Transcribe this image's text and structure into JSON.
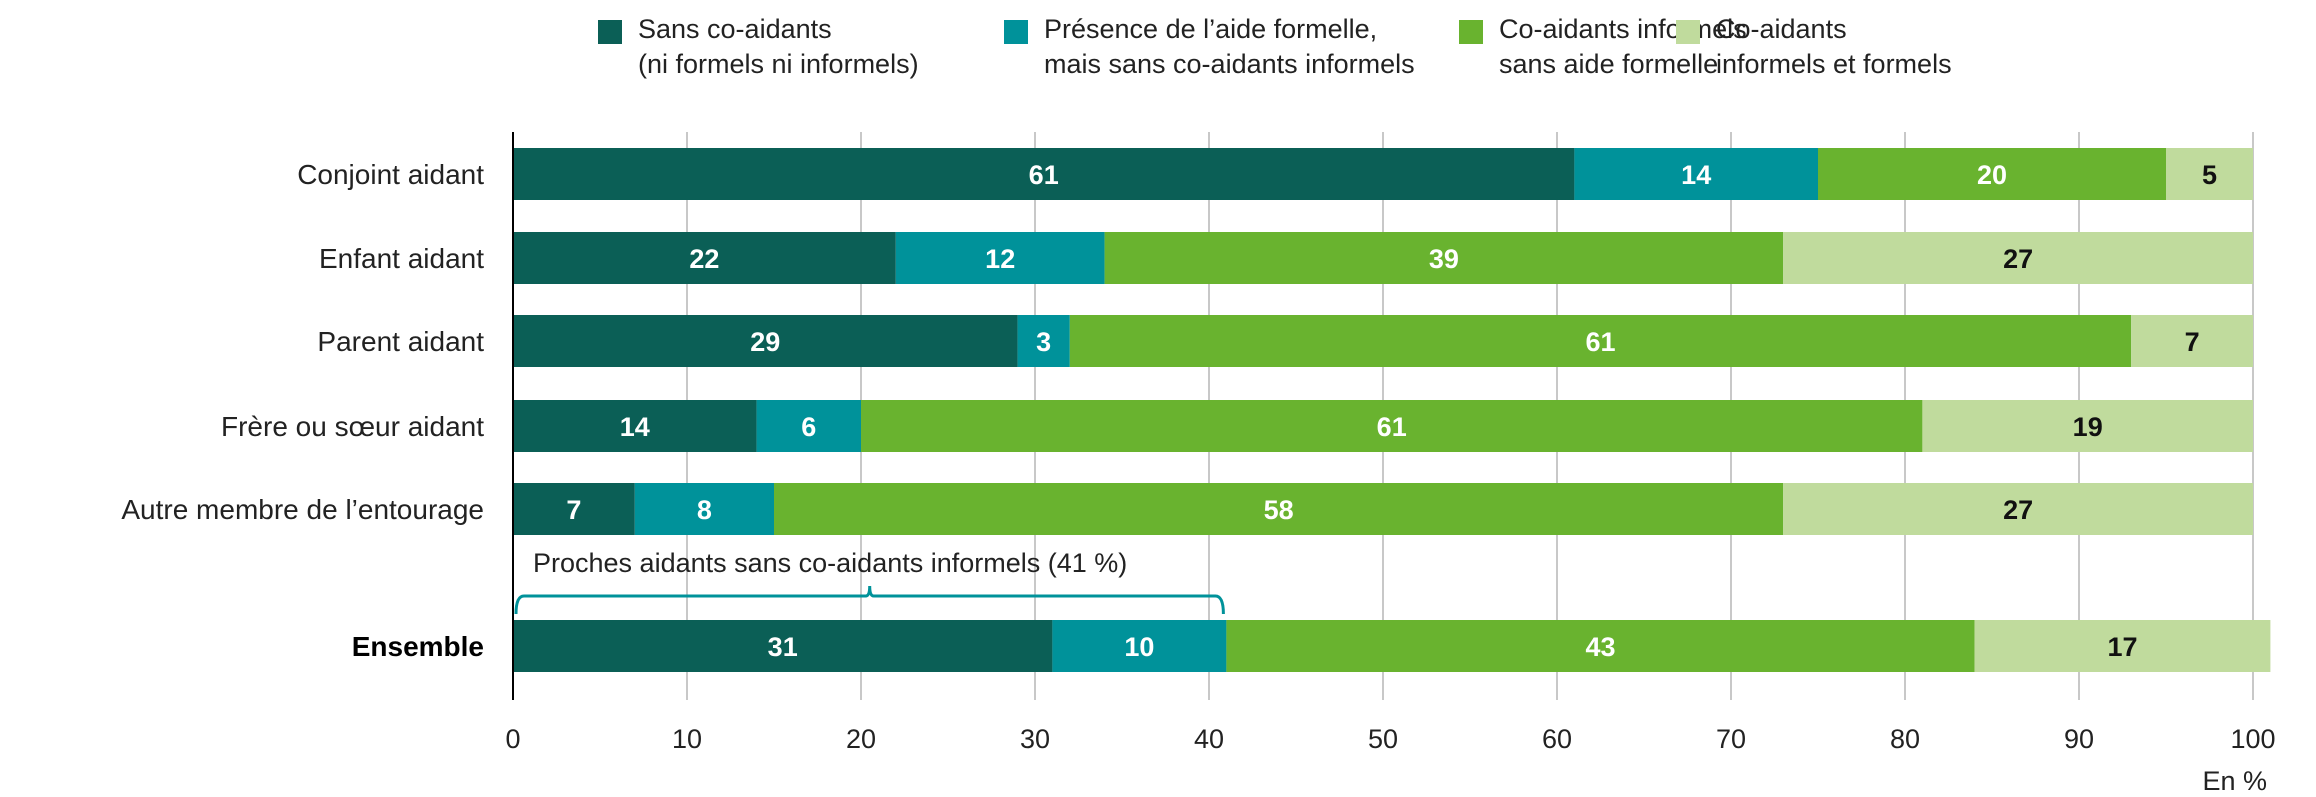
{
  "chart_data": {
    "type": "bar",
    "orientation": "horizontal",
    "stacked": true,
    "title": "",
    "xlabel": "",
    "ylabel": "",
    "unit_label": "En %",
    "xlim": [
      0,
      100
    ],
    "x_ticks": [
      0,
      10,
      20,
      30,
      40,
      50,
      60,
      70,
      80,
      90,
      100
    ],
    "grid": true,
    "legend_position": "top",
    "categories": [
      "Conjoint aidant",
      "Enfant aidant",
      "Parent aidant",
      "Frère ou sœur aidant",
      "Autre membre de l’entourage",
      "Ensemble"
    ],
    "bold_categories": [
      "Ensemble"
    ],
    "series": [
      {
        "name": "Sans co-aidants (ni formels ni informels)",
        "legend_lines": [
          "Sans co-aidants",
          "(ni formels ni informels)"
        ],
        "color": "#0b5f56",
        "label_color": "#ffffff",
        "values": [
          61,
          22,
          29,
          14,
          7,
          31
        ]
      },
      {
        "name": "Présence de l’aide formelle, mais sans co-aidants informels",
        "legend_lines": [
          "Présence de l’aide formelle,",
          "mais sans co-aidants informels"
        ],
        "color": "#00929a",
        "label_color": "#ffffff",
        "values": [
          14,
          12,
          3,
          6,
          8,
          10
        ]
      },
      {
        "name": "Co-aidants informels sans aide formelle",
        "legend_lines": [
          "Co-aidants informels",
          "sans aide formelle"
        ],
        "color": "#69b32f",
        "label_color": "#ffffff",
        "values": [
          20,
          39,
          61,
          61,
          58,
          43
        ]
      },
      {
        "name": "Co-aidants informels et formels",
        "legend_lines": [
          "Co-aidants",
          "informels et formels"
        ],
        "color": "#c0db9d",
        "label_color": "#111111",
        "values": [
          5,
          27,
          7,
          19,
          27,
          17
        ]
      }
    ],
    "annotations": [
      {
        "text": "Proches aidants sans co-aidants informels (41 %)",
        "category": "Ensemble",
        "range": [
          0,
          41
        ],
        "bracket_color": "#00929a"
      }
    ]
  }
}
